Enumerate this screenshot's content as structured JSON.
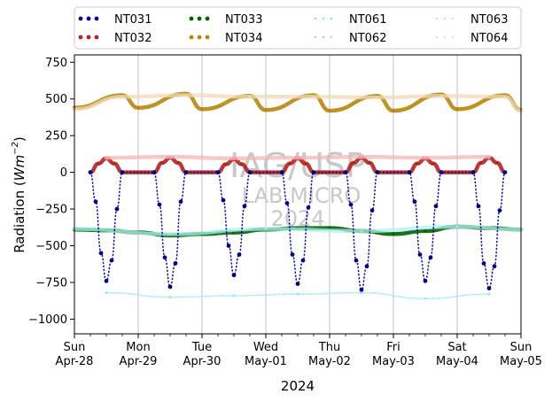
{
  "chart_data": {
    "type": "scatter",
    "title": "",
    "xlabel": "2024",
    "ylabel": "Radiation (Wm⁻²)",
    "ylabel_main": "Radiation (",
    "ylabel_unit": "Wm",
    "ylabel_exp": "−2",
    "ylabel_close": ")",
    "xlim": [
      "2024-04-28",
      "2024-05-05"
    ],
    "ylim": [
      -1100,
      800
    ],
    "yticks": [
      -1000,
      -750,
      -500,
      -250,
      0,
      250,
      500,
      750
    ],
    "ytick_labels": [
      "−1000",
      "−750",
      "−500",
      "−250",
      "0",
      "250",
      "500",
      "750"
    ],
    "xticks": [
      {
        "dow": "Sun",
        "date": "Apr-28"
      },
      {
        "dow": "Mon",
        "date": "Apr-29"
      },
      {
        "dow": "Tue",
        "date": "Apr-30"
      },
      {
        "dow": "Wed",
        "date": "May-01"
      },
      {
        "dow": "Thu",
        "date": "May-02"
      },
      {
        "dow": "Fri",
        "date": "May-03"
      },
      {
        "dow": "Sat",
        "date": "May-04"
      },
      {
        "dow": "Sun",
        "date": "May-05"
      }
    ],
    "grid": "vertical-major",
    "legend_placement": "top, outside",
    "series": [
      {
        "name": "NT031",
        "color": "#00008b",
        "style": "dotted",
        "description": "daytime incoming shortwave, negative",
        "x": [
          "Apr-28 06:00",
          "Apr-28 08:00",
          "Apr-28 10:00",
          "Apr-28 12:00",
          "Apr-28 14:00",
          "Apr-28 16:00",
          "Apr-28 18:00",
          "Apr-29 06:00",
          "Apr-29 08:00",
          "Apr-29 10:00",
          "Apr-29 12:00",
          "Apr-29 14:00",
          "Apr-29 16:00",
          "Apr-29 18:00",
          "Apr-30 06:00",
          "Apr-30 08:00",
          "Apr-30 10:00",
          "Apr-30 12:00",
          "Apr-30 14:00",
          "Apr-30 16:00",
          "Apr-30 18:00",
          "May-01 06:00",
          "May-01 08:00",
          "May-01 10:00",
          "May-01 12:00",
          "May-01 14:00",
          "May-01 16:00",
          "May-01 18:00",
          "May-02 06:00",
          "May-02 08:00",
          "May-02 10:00",
          "May-02 12:00",
          "May-02 14:00",
          "May-02 16:00",
          "May-02 18:00",
          "May-03 06:00",
          "May-03 08:00",
          "May-03 10:00",
          "May-03 12:00",
          "May-03 14:00",
          "May-03 16:00",
          "May-03 18:00",
          "May-04 06:00",
          "May-04 08:00",
          "May-04 10:00",
          "May-04 12:00",
          "May-04 14:00",
          "May-04 16:00",
          "May-04 18:00"
        ],
        "values": [
          0,
          -200,
          -550,
          -740,
          -600,
          -250,
          0,
          0,
          -220,
          -580,
          -780,
          -620,
          -200,
          0,
          0,
          -190,
          -500,
          -700,
          -560,
          -230,
          0,
          0,
          -210,
          -560,
          -760,
          -600,
          -240,
          0,
          0,
          -220,
          -600,
          -800,
          -640,
          -260,
          0,
          0,
          -200,
          -560,
          -740,
          -580,
          -230,
          0,
          0,
          -230,
          -620,
          -790,
          -640,
          -260,
          0
        ]
      },
      {
        "name": "NT032",
        "color": "#b22222",
        "style": "dotted",
        "description": "daytime reflected shortwave, positive",
        "x": [
          "Apr-28 06:00",
          "Apr-28 09:00",
          "Apr-28 12:00",
          "Apr-28 15:00",
          "Apr-28 18:00",
          "Apr-29 06:00",
          "Apr-29 09:00",
          "Apr-29 12:00",
          "Apr-29 15:00",
          "Apr-29 18:00",
          "Apr-30 06:00",
          "Apr-30 09:00",
          "Apr-30 12:00",
          "Apr-30 15:00",
          "Apr-30 18:00",
          "May-01 06:00",
          "May-01 09:00",
          "May-01 12:00",
          "May-01 15:00",
          "May-01 18:00",
          "May-02 06:00",
          "May-02 09:00",
          "May-02 12:00",
          "May-02 15:00",
          "May-02 18:00",
          "May-03 06:00",
          "May-03 09:00",
          "May-03 12:00",
          "May-03 15:00",
          "May-03 18:00",
          "May-04 06:00",
          "May-04 09:00",
          "May-04 12:00",
          "May-04 15:00",
          "May-04 18:00"
        ],
        "values": [
          0,
          60,
          95,
          60,
          0,
          0,
          65,
          100,
          65,
          0,
          0,
          55,
          90,
          55,
          0,
          0,
          60,
          95,
          60,
          0,
          0,
          65,
          100,
          65,
          0,
          0,
          60,
          95,
          60,
          0,
          0,
          65,
          100,
          65,
          0
        ]
      },
      {
        "name": "NT033",
        "color": "#006400",
        "style": "dotted",
        "description": "longwave, about -400",
        "x": [
          "Apr-28 00:00",
          "Apr-28 12:00",
          "Apr-29 00:00",
          "Apr-29 12:00",
          "Apr-30 00:00",
          "Apr-30 12:00",
          "May-01 00:00",
          "May-01 12:00",
          "May-02 00:00",
          "May-02 12:00",
          "May-03 00:00",
          "May-03 12:00",
          "May-04 00:00",
          "May-04 12:00",
          "May-05 00:00"
        ],
        "values": [
          -390,
          -395,
          -410,
          -430,
          -420,
          -410,
          -390,
          -380,
          -380,
          -400,
          -420,
          -400,
          -370,
          -380,
          -390
        ]
      },
      {
        "name": "NT034",
        "color": "#b8860b",
        "style": "dotted",
        "description": "longwave, about 430-530",
        "x": [
          "Apr-28 00:00",
          "Apr-28 18:00",
          "Apr-29 00:00",
          "Apr-29 18:00",
          "Apr-30 00:00",
          "Apr-30 18:00",
          "May-01 00:00",
          "May-01 18:00",
          "May-02 00:00",
          "May-02 18:00",
          "May-03 00:00",
          "May-03 18:00",
          "May-04 00:00",
          "May-04 18:00",
          "May-05 00:00"
        ],
        "values": [
          440,
          525,
          440,
          535,
          430,
          520,
          425,
          525,
          420,
          520,
          420,
          530,
          430,
          525,
          425
        ]
      },
      {
        "name": "NT061",
        "color": "#7fe3f5",
        "style": "dotted",
        "description": "incoming shortwave, negative",
        "x": [
          "Apr-28 12:00",
          "Apr-29 12:00",
          "Apr-30 12:00",
          "May-01 12:00",
          "May-02 12:00",
          "May-03 12:00",
          "May-04 12:00"
        ],
        "values": [
          -820,
          -850,
          -840,
          -830,
          -820,
          -860,
          -830
        ]
      },
      {
        "name": "NT062",
        "color": "#f5b5b5",
        "style": "dotted",
        "description": "reflected shortwave",
        "x": [
          "Apr-28 12:00",
          "Apr-29 12:00",
          "Apr-30 12:00",
          "May-01 12:00",
          "May-02 12:00",
          "May-03 12:00",
          "May-04 12:00"
        ],
        "values": [
          100,
          105,
          95,
          100,
          105,
          100,
          105
        ]
      },
      {
        "name": "NT063",
        "color": "#aef0f7",
        "style": "dotted",
        "description": "longwave down",
        "x": [
          "Apr-28 00:00",
          "Apr-29 12:00",
          "May-01 00:00",
          "May-02 12:00",
          "May-04 00:00",
          "May-05 00:00"
        ],
        "values": [
          -385,
          -420,
          -385,
          -400,
          -370,
          -390
        ]
      },
      {
        "name": "NT064",
        "color": "#f0d9b8",
        "style": "dotted",
        "description": "longwave up",
        "x": [
          "Apr-28 00:00",
          "Apr-28 18:00",
          "Apr-29 18:00",
          "Apr-30 18:00",
          "May-01 18:00",
          "May-02 18:00",
          "May-03 18:00",
          "May-04 18:00",
          "May-05 00:00"
        ],
        "values": [
          430,
          515,
          525,
          515,
          515,
          510,
          520,
          515,
          420
        ]
      }
    ]
  },
  "legend": {
    "columns": [
      [
        "NT031",
        "NT032"
      ],
      [
        "NT033",
        "NT034"
      ],
      [
        "NT061",
        "NT062"
      ],
      [
        "NT063",
        "NT064"
      ]
    ]
  },
  "watermark": {
    "line1": "IAG/USP",
    "line2": "LAB MICRO",
    "line3": "2024"
  }
}
